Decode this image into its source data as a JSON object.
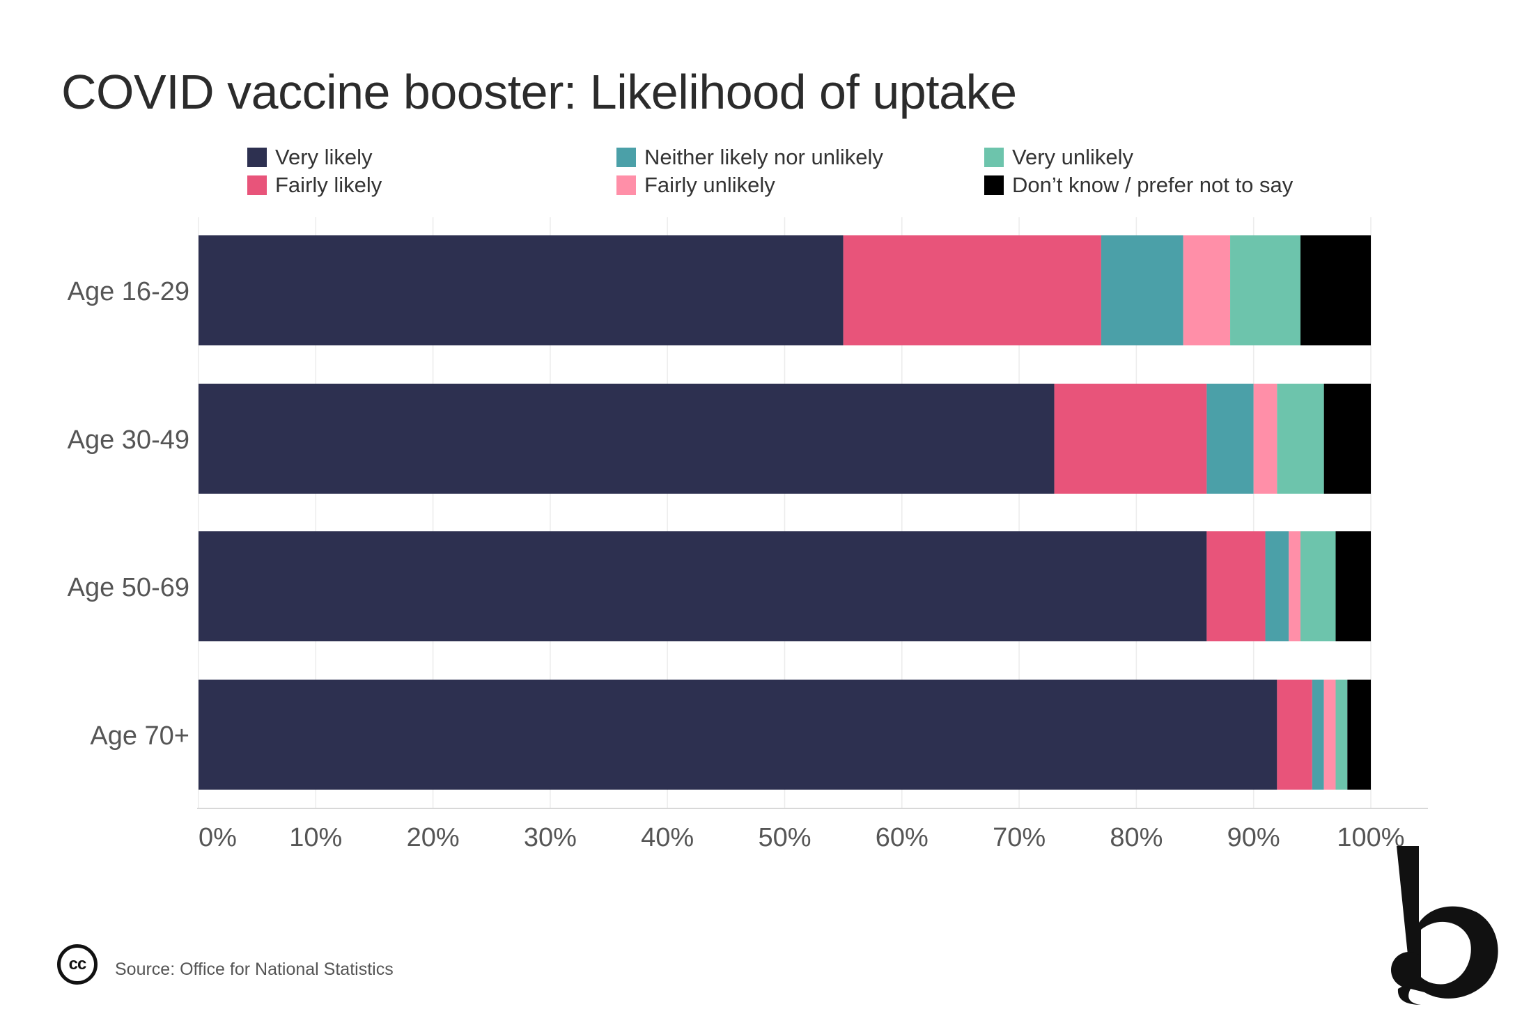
{
  "colors": {
    "very_likely": "#2d3050",
    "fairly_likely": "#e8547a",
    "neither": "#4ba0a8",
    "fairly_unlikely": "#ff8fa8",
    "very_unlikely": "#6dc4ac",
    "dont_know": "#000000"
  },
  "footer": {
    "source": "Source: Office for National Statistics",
    "cc": "cc"
  },
  "chart_data": {
    "type": "bar",
    "orientation": "horizontal",
    "stacked": true,
    "title": "COVID vaccine booster: Likelihood of uptake",
    "xlabel": "",
    "ylabel": "",
    "xlim": [
      0,
      100
    ],
    "x_ticks": [
      "0%",
      "10%",
      "20%",
      "30%",
      "40%",
      "50%",
      "60%",
      "70%",
      "80%",
      "90%",
      "100%"
    ],
    "grid": "vertical",
    "legend_position": "top",
    "categories": [
      "Age 16-29",
      "Age 30-49",
      "Age 50-69",
      "Age 70+"
    ],
    "series": [
      {
        "name": "Very likely",
        "color": "#2d3050",
        "values": [
          55,
          73,
          86,
          92
        ]
      },
      {
        "name": "Fairly likely",
        "color": "#e8547a",
        "values": [
          22,
          13,
          5,
          3
        ]
      },
      {
        "name": "Neither likely nor unlikely",
        "color": "#4ba0a8",
        "values": [
          7,
          4,
          2,
          1
        ]
      },
      {
        "name": "Fairly unlikely",
        "color": "#ff8fa8",
        "values": [
          4,
          2,
          1,
          1
        ]
      },
      {
        "name": "Very unlikely",
        "color": "#6dc4ac",
        "values": [
          6,
          4,
          3,
          1
        ]
      },
      {
        "name": "Don’t know / prefer not to say",
        "color": "#000000",
        "values": [
          6,
          4,
          3,
          2
        ]
      }
    ]
  }
}
